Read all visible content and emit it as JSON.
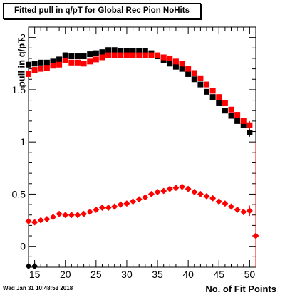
{
  "chart_data": {
    "type": "scatter",
    "title": "Fitted pull in q/pT  for Global Rec Pion NoHits",
    "xlabel": "No. of Fit Points",
    "ylabel": "pull in q/pT",
    "xlim": [
      14,
      51
    ],
    "ylim": [
      -0.2,
      2.1
    ],
    "x_tick_labels": [
      "15",
      "20",
      "25",
      "30",
      "35",
      "40",
      "45",
      "50"
    ],
    "y_tick_labels": [
      "0",
      "0.5",
      "1",
      "1.5",
      "2"
    ],
    "grid": false,
    "legend": "none",
    "series": [
      {
        "marker": "square",
        "color": "#000000",
        "x": [
          14,
          15,
          16,
          17,
          18,
          19,
          20,
          21,
          22,
          23,
          24,
          25,
          26,
          27,
          28,
          29,
          30,
          31,
          32,
          33,
          34,
          35,
          36,
          37,
          38,
          39,
          40,
          41,
          42,
          43,
          44,
          45,
          46,
          47,
          48,
          49,
          50
        ],
        "y": [
          1.74,
          1.75,
          1.76,
          1.76,
          1.77,
          1.79,
          1.83,
          1.82,
          1.82,
          1.82,
          1.84,
          1.85,
          1.86,
          1.88,
          1.88,
          1.87,
          1.87,
          1.87,
          1.87,
          1.87,
          1.85,
          1.82,
          1.78,
          1.75,
          1.72,
          1.7,
          1.65,
          1.6,
          1.55,
          1.48,
          1.43,
          1.37,
          1.3,
          1.25,
          1.2,
          1.16,
          1.09
        ],
        "err": [
          0,
          0,
          0,
          0,
          0,
          0,
          0,
          0,
          0,
          0,
          0,
          0,
          0,
          0,
          0,
          0,
          0,
          0,
          0,
          0,
          0,
          0,
          0,
          0,
          0,
          0,
          0,
          0,
          0,
          0,
          0,
          0,
          0,
          0,
          0,
          0,
          0.04
        ]
      },
      {
        "marker": "square",
        "color": "#ff0000",
        "x": [
          14,
          15,
          16,
          17,
          18,
          19,
          20,
          21,
          22,
          23,
          24,
          25,
          26,
          27,
          28,
          29,
          30,
          31,
          32,
          33,
          34,
          35,
          36,
          37,
          38,
          39,
          40,
          41,
          42,
          43,
          44,
          45,
          46,
          47,
          48,
          49,
          50
        ],
        "y": [
          1.65,
          1.69,
          1.7,
          1.71,
          1.73,
          1.74,
          1.78,
          1.76,
          1.76,
          1.75,
          1.77,
          1.79,
          1.81,
          1.83,
          1.83,
          1.83,
          1.83,
          1.83,
          1.83,
          1.83,
          1.83,
          1.83,
          1.81,
          1.8,
          1.77,
          1.75,
          1.7,
          1.66,
          1.61,
          1.55,
          1.49,
          1.43,
          1.37,
          1.31,
          1.26,
          1.2,
          1.16
        ],
        "err": [
          0,
          0,
          0,
          0,
          0,
          0,
          0,
          0,
          0,
          0,
          0,
          0,
          0,
          0,
          0,
          0,
          0,
          0,
          0,
          0,
          0,
          0,
          0,
          0,
          0,
          0,
          0,
          0,
          0,
          0,
          0,
          0,
          0,
          0,
          0,
          0,
          0.04
        ]
      },
      {
        "marker": "diamond",
        "color": "#ff0000",
        "x": [
          14,
          15,
          16,
          17,
          18,
          19,
          20,
          21,
          22,
          23,
          24,
          25,
          26,
          27,
          28,
          29,
          30,
          31,
          32,
          33,
          34,
          35,
          36,
          37,
          38,
          39,
          40,
          41,
          42,
          43,
          44,
          45,
          46,
          47,
          48,
          49,
          50
        ],
        "y": [
          0.24,
          0.23,
          0.25,
          0.26,
          0.28,
          0.31,
          0.3,
          0.3,
          0.3,
          0.31,
          0.33,
          0.35,
          0.37,
          0.37,
          0.38,
          0.4,
          0.41,
          0.43,
          0.45,
          0.47,
          0.5,
          0.52,
          0.53,
          0.55,
          0.56,
          0.57,
          0.55,
          0.52,
          0.5,
          0.48,
          0.46,
          0.43,
          0.41,
          0.38,
          0.35,
          0.33,
          0.34
        ],
        "err": [
          0.02,
          0.02,
          0.02,
          0.02,
          0.02,
          0.02,
          0.02,
          0.02,
          0.02,
          0.02,
          0.02,
          0.02,
          0.02,
          0.02,
          0.02,
          0.02,
          0.02,
          0.02,
          0.02,
          0.02,
          0.02,
          0.02,
          0.02,
          0.02,
          0.02,
          0.02,
          0.02,
          0.02,
          0.02,
          0.02,
          0.02,
          0.02,
          0.02,
          0.02,
          0.02,
          0.03,
          0.05
        ]
      },
      {
        "marker": "diamond",
        "color": "#ff0000",
        "x": [
          51
        ],
        "y": [
          0.1
        ],
        "err": [
          0.9
        ]
      },
      {
        "marker": "diamond",
        "color": "#000000",
        "x": [
          14,
          15
        ],
        "y": [
          -0.19,
          -0.19
        ],
        "err": [
          0,
          0
        ]
      }
    ]
  },
  "footer": {
    "timestamp": "Wed Jan 31 10:48:53 2018"
  }
}
